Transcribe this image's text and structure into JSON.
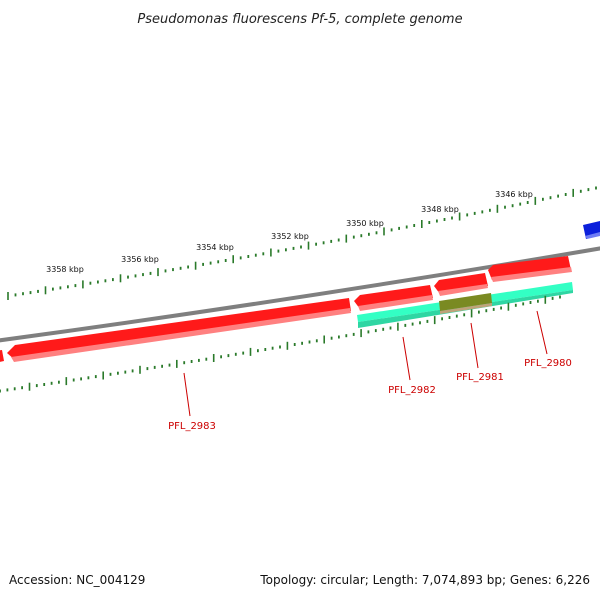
{
  "title": "Pseudomonas fluorescens Pf-5, complete genome",
  "footer": {
    "accession": "Accession: NC_004129",
    "stats": "Topology: circular; Length: 7,074,893 bp; Genes: 6,226"
  },
  "colors": {
    "backbone": "#7f7f7f",
    "forward_gene": "#ff1a1a",
    "reverse_gene": "#0b1fdb",
    "feature_band": "#33ffc4",
    "feature_highlight": "#7a8a22",
    "tick": "#2a7a2a",
    "gene_label": "#cc0000"
  },
  "scale": {
    "unit": "kbp",
    "tick_labels": [
      "3346 kbp",
      "3348 kbp",
      "3350 kbp",
      "3352 kbp",
      "3354 kbp",
      "3356 kbp",
      "3358 kbp"
    ]
  },
  "genes": [
    {
      "label": "PFL_2980",
      "strand": "reverse"
    },
    {
      "label": "PFL_2981",
      "strand": "reverse"
    },
    {
      "label": "PFL_2982",
      "strand": "reverse"
    },
    {
      "label": "PFL_2983",
      "strand": "reverse"
    }
  ]
}
